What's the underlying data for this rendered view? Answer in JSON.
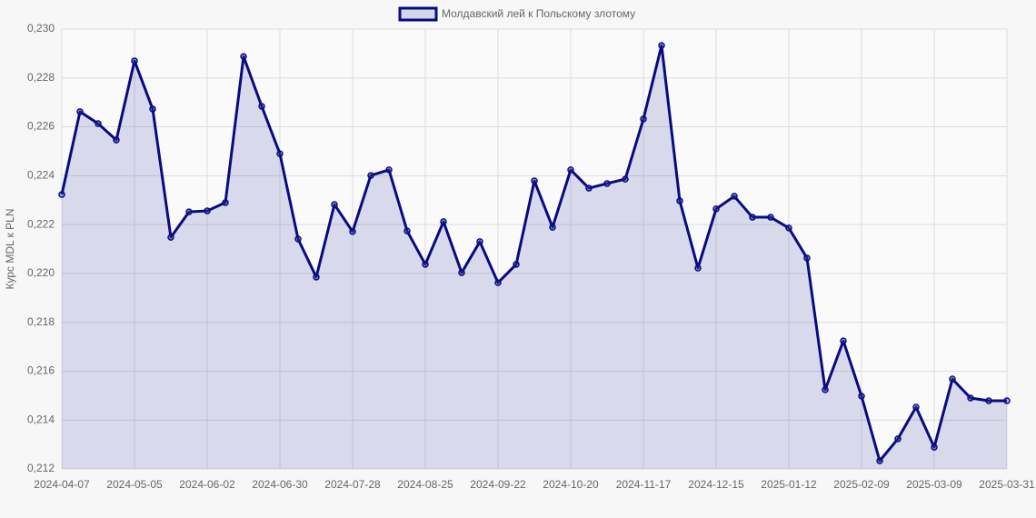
{
  "chart_data": {
    "type": "line",
    "y_label": "Курс MDL к PLN",
    "categories": [
      "2024-04-07",
      null,
      null,
      null,
      "2024-05-05",
      null,
      null,
      null,
      "2024-06-02",
      null,
      null,
      null,
      "2024-06-30",
      null,
      null,
      null,
      "2024-07-28",
      null,
      null,
      null,
      "2024-08-25",
      null,
      null,
      null,
      "2024-09-22",
      null,
      null,
      null,
      "2024-10-20",
      null,
      null,
      null,
      "2024-11-17",
      null,
      null,
      null,
      "2024-12-15",
      null,
      null,
      null,
      "2025-01-12",
      null,
      null,
      null,
      "2025-02-09",
      null,
      null,
      null,
      "2025-03-09",
      null,
      null,
      null,
      "2025-03-31"
    ],
    "series": [
      {
        "name": "Молдавский лей к Польскому злотому",
        "color": "#0a0a80",
        "fill": "rgba(60,70,170,0.18)",
        "values": [
          0.22323,
          0.22662,
          0.22613,
          0.22546,
          0.2287,
          0.22673,
          0.22148,
          0.22252,
          0.22256,
          0.2229,
          0.22888,
          0.22684,
          0.2249,
          0.22141,
          0.21985,
          0.22282,
          0.22171,
          0.22401,
          0.22424,
          0.22174,
          0.22037,
          0.22212,
          0.22003,
          0.2213,
          0.21962,
          0.22037,
          0.22379,
          0.22189,
          0.22424,
          0.22349,
          0.22368,
          0.22386,
          0.22632,
          0.22933,
          0.22297,
          0.22022,
          0.22264,
          0.22316,
          0.2223,
          0.2223,
          0.22186,
          0.22063,
          0.21524,
          0.21724,
          0.21498,
          0.21233,
          0.21323,
          0.21453,
          0.21289,
          0.21568,
          0.2149,
          0.21479,
          0.21479
        ]
      }
    ],
    "ylim": [
      0.212,
      0.23
    ],
    "yticks": [
      {
        "value": 0.212,
        "label": "0,212"
      },
      {
        "value": 0.214,
        "label": "0,214"
      },
      {
        "value": 0.216,
        "label": "0,216"
      },
      {
        "value": 0.218,
        "label": "0,218"
      },
      {
        "value": 0.22,
        "label": "0,220"
      },
      {
        "value": 0.222,
        "label": "0,222"
      },
      {
        "value": 0.224,
        "label": "0,224"
      },
      {
        "value": 0.226,
        "label": "0,226"
      },
      {
        "value": 0.228,
        "label": "0,228"
      },
      {
        "value": 0.23,
        "label": "0,230"
      }
    ],
    "grid": true,
    "legend": "top"
  }
}
